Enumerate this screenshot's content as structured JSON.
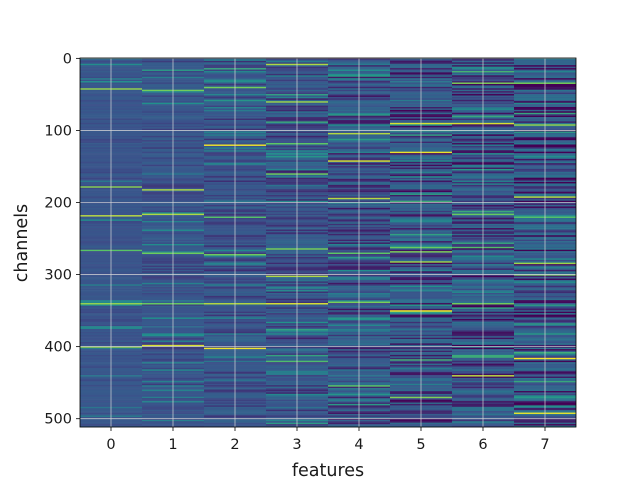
{
  "chart_data": {
    "type": "heatmap",
    "title": "",
    "xlabel": "features",
    "ylabel": "channels",
    "x_ticks": [
      "0",
      "1",
      "2",
      "3",
      "4",
      "5",
      "6",
      "7"
    ],
    "y_ticks": [
      "0",
      "100",
      "200",
      "300",
      "400",
      "500"
    ],
    "n_features": 8,
    "n_channels": 512,
    "xlim": [
      -0.5,
      7.5
    ],
    "ylim": [
      511.5,
      -0.5
    ],
    "grid": true,
    "colormap": "viridis",
    "colors": {
      "low": "#3b4f8c",
      "mid": "#21918c",
      "high": "#fde725",
      "grid": "#d9d9d9",
      "axis": "#000000"
    },
    "bright_rows": {
      "0": [
        42,
        178,
        218,
        267,
        341,
        400
      ],
      "1": [
        44,
        182,
        216,
        270,
        341,
        398
      ],
      "2": [
        40,
        120,
        220,
        272,
        340,
        402
      ],
      "3": [
        9,
        60,
        118,
        160,
        265,
        303,
        340,
        420
      ],
      "4": [
        105,
        142,
        195,
        271,
        338,
        455
      ],
      "5": [
        90,
        130,
        262,
        268,
        282,
        350,
        470
      ],
      "6": [
        34,
        90,
        216,
        262,
        341,
        440
      ],
      "7": [
        35,
        92,
        192,
        220,
        284,
        300,
        416,
        492
      ]
    }
  }
}
